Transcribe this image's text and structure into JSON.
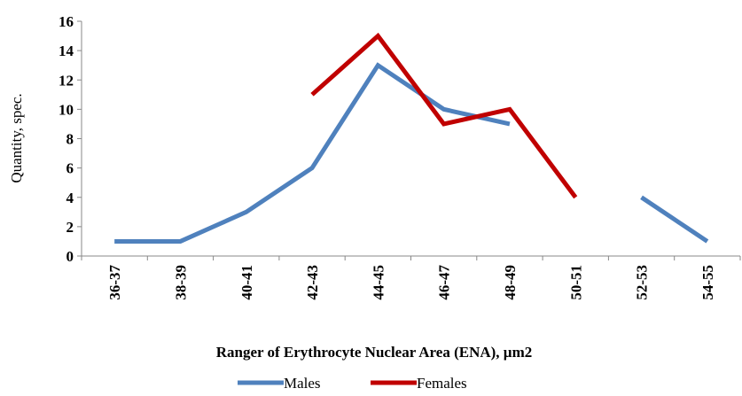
{
  "chart_data": {
    "type": "line",
    "x_label": "Ranger of Erythrocyte Nuclear Area (ENA), µm2",
    "y_label": "Quantity, spec.",
    "categories": [
      "36-37",
      "38-39",
      "40-41",
      "42-43",
      "44-45",
      "46-47",
      "48-49",
      "50-51",
      "52-53",
      "54-55"
    ],
    "series": [
      {
        "name": "Males",
        "color": "#4f81bd",
        "values": [
          1,
          1,
          3,
          6,
          13,
          10,
          9,
          null,
          4,
          1
        ]
      },
      {
        "name": "Females",
        "color": "#c00000",
        "values": [
          null,
          null,
          null,
          11,
          15,
          9,
          10,
          4,
          null,
          null
        ]
      }
    ],
    "ylim": [
      0,
      16
    ],
    "yticks": [
      0,
      2,
      4,
      6,
      8,
      10,
      12,
      14,
      16
    ],
    "grid": false,
    "legend": "bottom"
  }
}
